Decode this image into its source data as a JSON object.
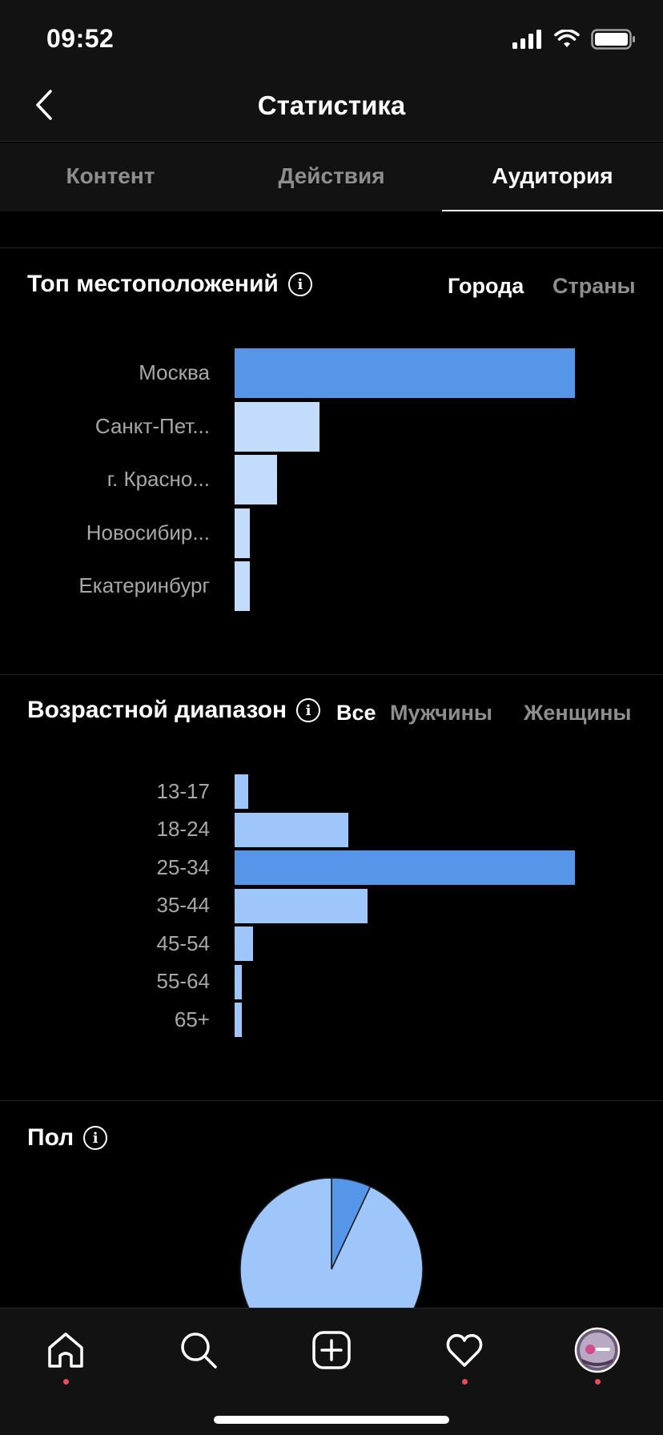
{
  "status_bar": {
    "time": "09:52"
  },
  "header": {
    "title": "Статистика"
  },
  "tabs": [
    {
      "label": "Контент",
      "active": false
    },
    {
      "label": "Действия",
      "active": false
    },
    {
      "label": "Аудитория",
      "active": true
    }
  ],
  "locations": {
    "title": "Топ местоположений",
    "filters": [
      {
        "label": "Города",
        "active": true
      },
      {
        "label": "Страны",
        "active": false
      }
    ],
    "chart_data": {
      "type": "bar",
      "orientation": "horizontal",
      "categories": [
        "Москва",
        "Санкт-Пет...",
        "г. Красно...",
        "Новосибир...",
        "Екатеринбург"
      ],
      "values": [
        100,
        25,
        12.5,
        4.5,
        4.5
      ],
      "highlight_color": "#5596e9",
      "bar_color": "#c4dcfc"
    }
  },
  "age": {
    "title": "Возрастной диапазон",
    "filters": [
      {
        "label": "Все",
        "active": true
      },
      {
        "label": "Мужчины",
        "active": false
      },
      {
        "label": "Женщины",
        "active": false
      }
    ],
    "chart_data": {
      "type": "bar",
      "orientation": "horizontal",
      "categories": [
        "13-17",
        "18-24",
        "25-34",
        "35-44",
        "45-54",
        "55-64",
        "65+"
      ],
      "values": [
        4,
        33.5,
        100,
        39,
        5.5,
        2,
        2
      ],
      "highlight_color": "#5596e9",
      "bar_color": "#9ec6fa"
    }
  },
  "gender": {
    "title": "Пол",
    "chart_data": {
      "type": "pie",
      "values": [
        7,
        93
      ],
      "colors": [
        "#5596e9",
        "#9ec6fa"
      ]
    }
  },
  "bottom_nav": {
    "items": [
      "home-icon",
      "search-icon",
      "new-post-icon",
      "activity-heart-icon",
      "profile-avatar"
    ]
  }
}
